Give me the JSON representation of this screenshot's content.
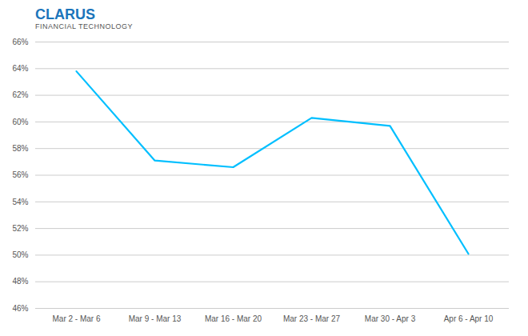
{
  "chart_data": {
    "type": "line",
    "title": "CLARUS",
    "subtitle": "FINANCIAL TECHNOLOGY",
    "categories": [
      "Mar 2 - Mar 6",
      "Mar 9 - Mar 13",
      "Mar 16 - Mar 20",
      "Mar 23 - Mar 27",
      "Mar 30 - Apr 3",
      "Apr 6 - Apr 10"
    ],
    "values": [
      63.8,
      57.1,
      56.6,
      60.3,
      59.7,
      50.1
    ],
    "color": "#00BFFF",
    "ylim": [
      46,
      66
    ],
    "yticks": [
      {
        "value": 46,
        "label": "46%"
      },
      {
        "value": 48,
        "label": "48%"
      },
      {
        "value": 50,
        "label": "50%"
      },
      {
        "value": 52,
        "label": "52%"
      },
      {
        "value": 54,
        "label": "54%"
      },
      {
        "value": 56,
        "label": "56%"
      },
      {
        "value": 58,
        "label": "58%"
      },
      {
        "value": 60,
        "label": "60%"
      },
      {
        "value": 62,
        "label": "62%"
      },
      {
        "value": 64,
        "label": "64%"
      },
      {
        "value": 66,
        "label": "66%"
      }
    ],
    "grid": true
  }
}
